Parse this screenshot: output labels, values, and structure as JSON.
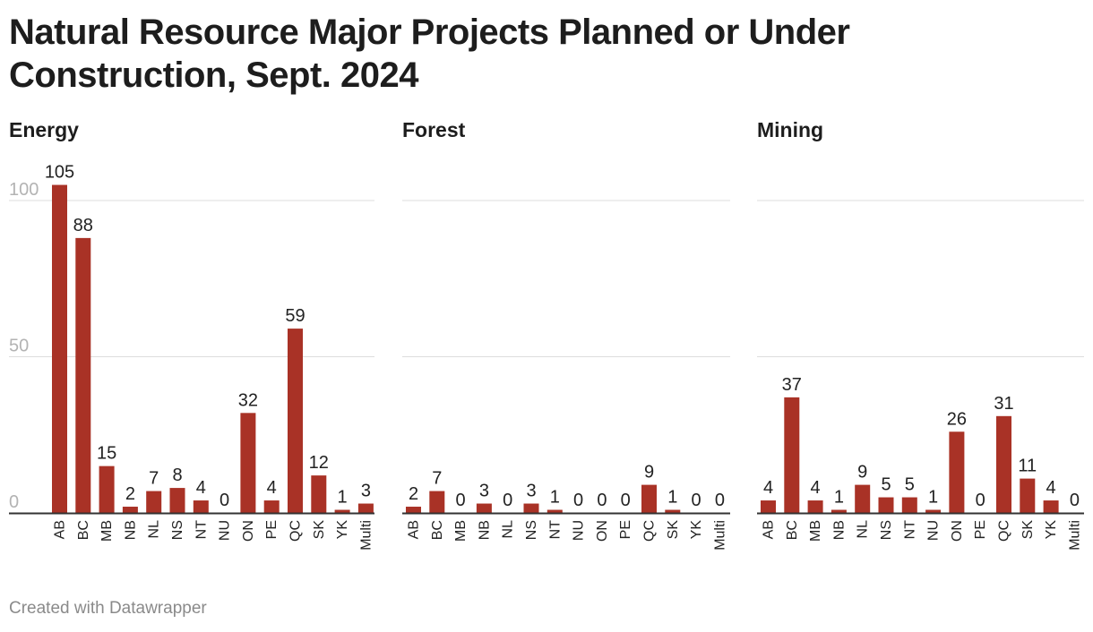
{
  "title": "Natural Resource Major Projects Planned or Under Construction, Sept. 2024",
  "footer": "Created with Datawrapper",
  "colors": {
    "bar": "#a93226",
    "grid": "#dddddd",
    "baseline": "#333333",
    "tick": "#b3b3b3",
    "text": "#222222"
  },
  "chart_data": [
    {
      "type": "bar",
      "title": "Energy",
      "categories": [
        "AB",
        "BC",
        "MB",
        "NB",
        "NL",
        "NS",
        "NT",
        "NU",
        "ON",
        "PE",
        "QC",
        "SK",
        "YK",
        "Multi"
      ],
      "values": [
        105,
        88,
        15,
        2,
        7,
        8,
        4,
        0,
        32,
        4,
        59,
        12,
        1,
        3
      ],
      "yticks": [
        0,
        50,
        100
      ],
      "ylim": [
        0,
        100
      ],
      "grid": true
    },
    {
      "type": "bar",
      "title": "Forest",
      "categories": [
        "AB",
        "BC",
        "MB",
        "NB",
        "NL",
        "NS",
        "NT",
        "NU",
        "ON",
        "PE",
        "QC",
        "SK",
        "YK",
        "Multi"
      ],
      "values": [
        2,
        7,
        0,
        3,
        0,
        3,
        1,
        0,
        0,
        0,
        9,
        1,
        0,
        0
      ],
      "yticks": [
        0,
        50,
        100
      ],
      "ylim": [
        0,
        100
      ],
      "grid": true
    },
    {
      "type": "bar",
      "title": "Mining",
      "categories": [
        "AB",
        "BC",
        "MB",
        "NB",
        "NL",
        "NS",
        "NT",
        "NU",
        "ON",
        "PE",
        "QC",
        "SK",
        "YK",
        "Multi"
      ],
      "values": [
        4,
        37,
        4,
        1,
        9,
        5,
        5,
        1,
        26,
        0,
        31,
        11,
        4,
        0
      ],
      "yticks": [
        0,
        50,
        100
      ],
      "ylim": [
        0,
        100
      ],
      "grid": true
    }
  ]
}
